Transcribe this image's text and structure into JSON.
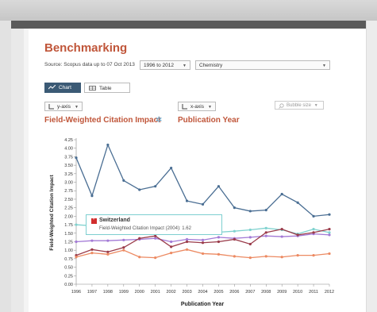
{
  "title": "Benchmarking",
  "source_label": "Source: Scopus data up to 07 Oct 2013",
  "year_range_select": "1996 to 2012",
  "subject_select": "Chemistry",
  "view_buttons": {
    "chart": "Chart",
    "table": "Table"
  },
  "yaxis_select": "y-axis",
  "xaxis_select": "x-axis",
  "bubble_select": "Bubble size",
  "yaxis_title": "Field-Weighted Citation Impact",
  "xaxis_title": "Publication Year",
  "tooltip": {
    "country": "Switzerland",
    "detail": "Field-Weighted Citation Impact (2004):  1.62"
  },
  "colors": {
    "title": "#c0563a",
    "chart_button": "#3b5a75"
  },
  "chart_data": {
    "type": "line",
    "ylabel": "Field-Weighted Citation Impact",
    "xlabel": "Publication Year",
    "ylim": [
      0,
      4.25
    ],
    "yticks": [
      "0.00",
      "0.25",
      "0.50",
      "0.75",
      "1.00",
      "1.25",
      "1.50",
      "1.75",
      "2.00",
      "2.25",
      "2.50",
      "2.75",
      "3.00",
      "3.25",
      "3.50",
      "3.75",
      "4.00",
      "4.25"
    ],
    "x": [
      "1996",
      "1997",
      "1998",
      "1999",
      "2000",
      "2001",
      "2002",
      "2003",
      "2004",
      "2005",
      "2006",
      "2007",
      "2008",
      "2009",
      "2010",
      "2011",
      "2012"
    ],
    "series": [
      {
        "color": "#4a6e93",
        "values": [
          3.72,
          2.6,
          4.1,
          3.05,
          2.78,
          2.88,
          3.42,
          2.45,
          2.35,
          2.88,
          2.25,
          2.15,
          2.18,
          2.65,
          2.4,
          2.0,
          2.05
        ]
      },
      {
        "color": "#7fd2cf",
        "values": [
          1.75,
          1.72,
          1.7,
          1.68,
          1.66,
          1.65,
          1.64,
          1.63,
          1.62,
          1.53,
          1.56,
          1.6,
          1.65,
          1.6,
          1.48,
          1.62,
          1.52
        ]
      },
      {
        "color": "#a37ad6",
        "values": [
          1.25,
          1.28,
          1.28,
          1.3,
          1.32,
          1.35,
          1.25,
          1.32,
          1.3,
          1.38,
          1.35,
          1.38,
          1.42,
          1.4,
          1.42,
          1.48,
          1.45
        ]
      },
      {
        "color": "#9a3b4a",
        "values": [
          0.85,
          1.02,
          0.95,
          1.08,
          1.35,
          1.42,
          1.1,
          1.25,
          1.22,
          1.25,
          1.32,
          1.18,
          1.52,
          1.62,
          1.45,
          1.52,
          1.62
        ]
      },
      {
        "color": "#ec8a62",
        "values": [
          0.8,
          0.92,
          0.88,
          1.0,
          0.8,
          0.78,
          0.92,
          1.02,
          0.9,
          0.88,
          0.82,
          0.78,
          0.82,
          0.8,
          0.85,
          0.85,
          0.9
        ]
      }
    ]
  }
}
